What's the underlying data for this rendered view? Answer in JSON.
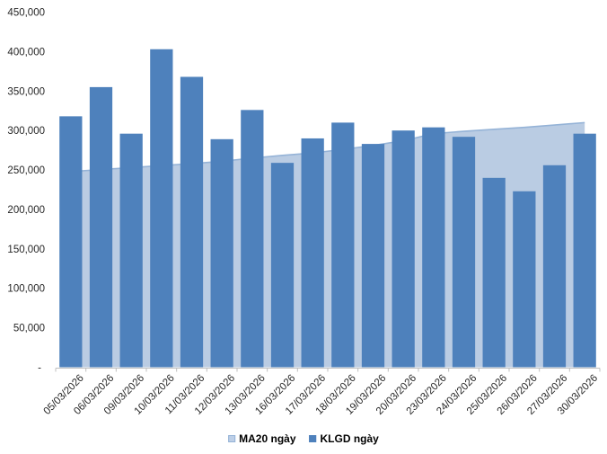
{
  "chart_data": {
    "type": "combo-area-bar",
    "title": "",
    "xlabel": "",
    "ylabel": "",
    "categories": [
      "05/03/2026",
      "06/03/2026",
      "09/03/2026",
      "10/03/2026",
      "11/03/2026",
      "12/03/2026",
      "13/03/2026",
      "16/03/2026",
      "17/03/2026",
      "18/03/2026",
      "19/03/2026",
      "20/03/2026",
      "23/03/2026",
      "24/03/2026",
      "25/03/2026",
      "26/03/2026",
      "27/03/2026",
      "30/03/2026"
    ],
    "series": [
      {
        "name": "MA20 ngày",
        "type": "area",
        "fill": "#BACCE3",
        "line": "#95B3D7",
        "values": [
          248000,
          250500,
          253000,
          255500,
          258000,
          261000,
          265000,
          268500,
          271500,
          276000,
          281000,
          287000,
          296000,
          299000,
          301500,
          304000,
          307000,
          310000
        ]
      },
      {
        "name": "KLGD ngày",
        "type": "bar",
        "fill": "#4E81BC",
        "values": [
          318000,
          355000,
          296000,
          403000,
          368000,
          289000,
          326000,
          259000,
          290000,
          310000,
          283000,
          300000,
          304000,
          292000,
          240000,
          223000,
          256000,
          296000
        ]
      }
    ],
    "ylim": [
      0,
      450000
    ],
    "ytick_step": 50000,
    "ytick_labels": [
      "-",
      "50,000",
      "100,000",
      "150,000",
      "200,000",
      "250,000",
      "300,000",
      "350,000",
      "400,000",
      "450,000"
    ],
    "grid": false,
    "legend_position": "bottom",
    "background": "#FFFFFF",
    "axis_color": "#BFBFBF",
    "label_color": "#262626"
  }
}
